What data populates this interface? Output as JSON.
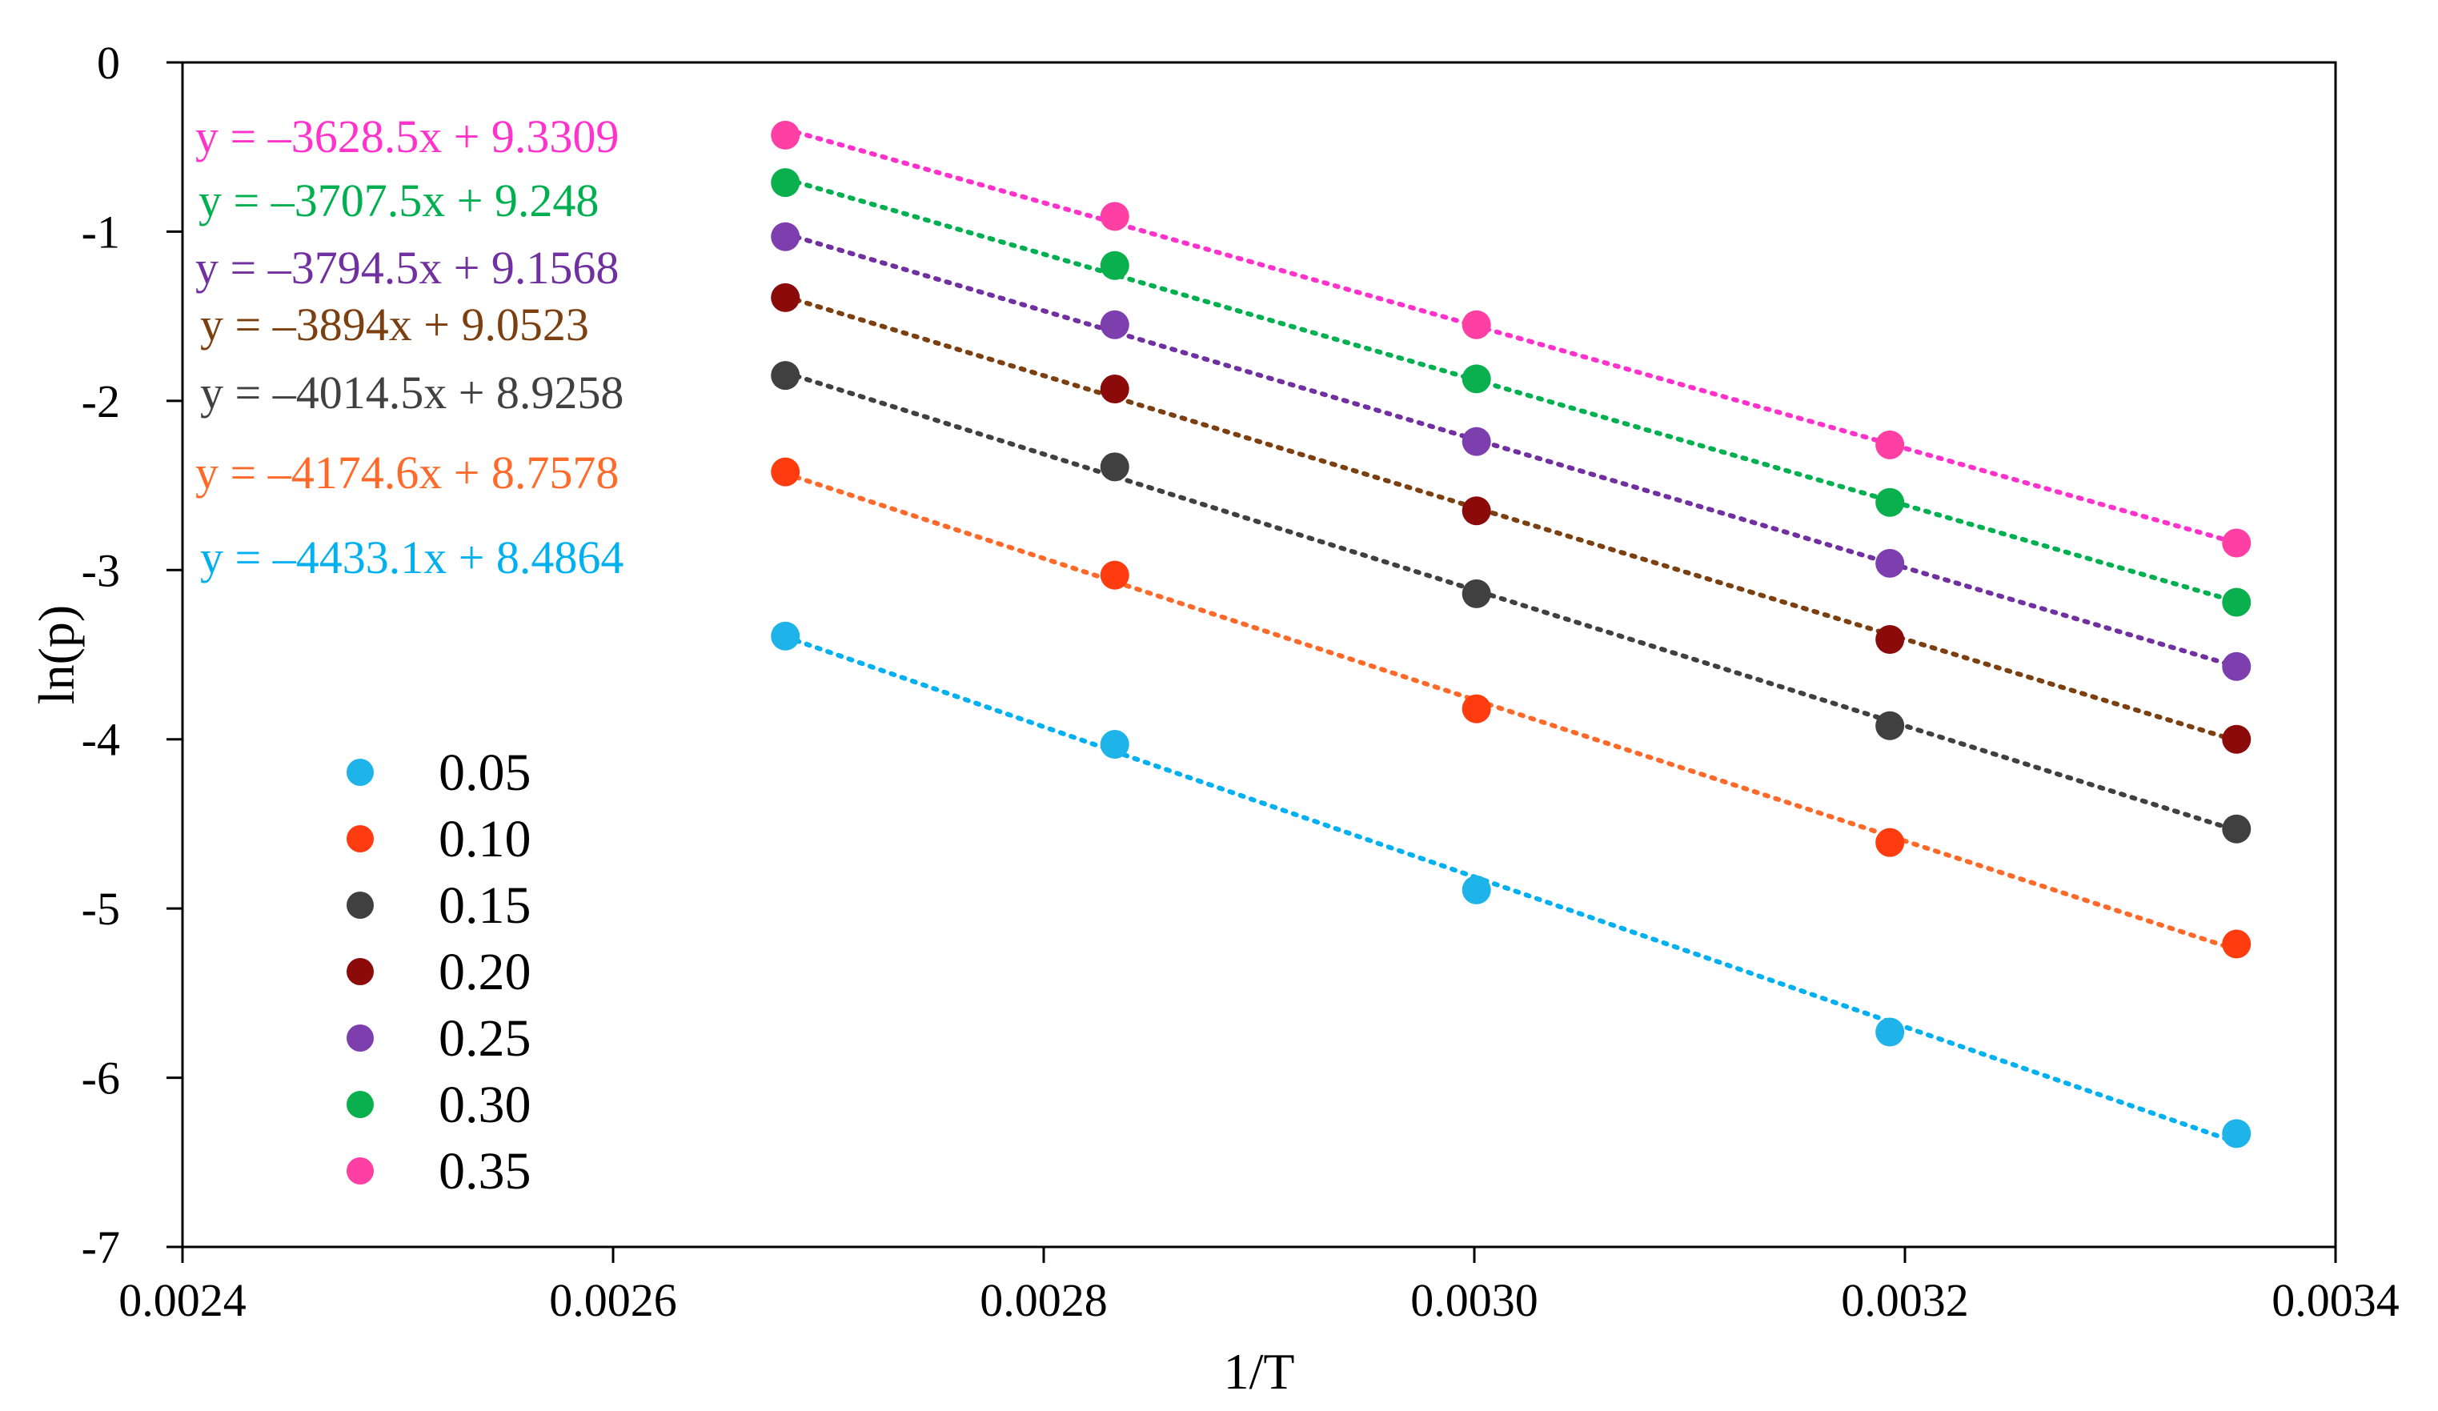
{
  "chart_data": {
    "type": "scatter",
    "title": "",
    "xlabel": "1/T",
    "ylabel": "ln(p)",
    "xlim": [
      0.0024,
      0.0034
    ],
    "ylim": [
      -7,
      0
    ],
    "xticks": [
      0.0024,
      0.0026,
      0.0028,
      0.003,
      0.0032,
      0.0034
    ],
    "xtick_labels": [
      "0.0024",
      "0.0026",
      "0.0028",
      "0.0030",
      "0.0032",
      "0.0034"
    ],
    "yticks": [
      0,
      -1,
      -2,
      -3,
      -4,
      -5,
      -6,
      -7
    ],
    "ytick_labels": [
      "0",
      "-1",
      "-2",
      "-3",
      "-4",
      "-5",
      "-6",
      "-7"
    ],
    "legend_position": "bottom-left",
    "x": [
      0.00268,
      0.002833,
      0.003001,
      0.003193,
      0.003354
    ],
    "series": [
      {
        "name": "0.05",
        "color": "#1eb4ea",
        "trend_color": "#00b0f0",
        "equation": "y = –4433.1x + 8.4864",
        "slope": -4433.1,
        "intercept": 8.4864,
        "values": [
          -3.39,
          -4.03,
          -4.89,
          -5.73,
          -6.33
        ]
      },
      {
        "name": "0.10",
        "color": "#ff3b10",
        "trend_color": "#ff6a2a",
        "equation": "y = –4174.6x + 8.7578",
        "slope": -4174.6,
        "intercept": 8.7578,
        "values": [
          -2.42,
          -3.03,
          -3.82,
          -4.61,
          -5.21
        ]
      },
      {
        "name": "0.15",
        "color": "#404040",
        "trend_color": "#404040",
        "equation": "y = –4014.5x + 8.9258",
        "slope": -4014.5,
        "intercept": 8.9258,
        "values": [
          -1.85,
          -2.39,
          -3.14,
          -3.92,
          -4.53
        ]
      },
      {
        "name": "0.20",
        "color": "#8b0a0a",
        "trend_color": "#7b3f10",
        "equation": "y = –3894x + 9.0523",
        "slope": -3894,
        "intercept": 9.0523,
        "values": [
          -1.39,
          -1.93,
          -2.65,
          -3.41,
          -4.0
        ]
      },
      {
        "name": "0.25",
        "color": "#7e3fae",
        "trend_color": "#7030a0",
        "equation": "y = –3794.5x + 9.1568",
        "slope": -3794.5,
        "intercept": 9.1568,
        "values": [
          -1.03,
          -1.55,
          -2.24,
          -2.96,
          -3.57
        ]
      },
      {
        "name": "0.30",
        "color": "#0ab04e",
        "trend_color": "#00b050",
        "equation": "y = –3707.5x + 9.248",
        "slope": -3707.5,
        "intercept": 9.248,
        "values": [
          -0.71,
          -1.2,
          -1.87,
          -2.6,
          -3.19
        ]
      },
      {
        "name": "0.35",
        "color": "#ff3fa4",
        "trend_color": "#ff33cc",
        "equation": "y = –3628.5x + 9.3309",
        "slope": -3628.5,
        "intercept": 9.3309,
        "values": [
          -0.43,
          -0.91,
          -1.55,
          -2.26,
          -2.84
        ]
      }
    ]
  }
}
